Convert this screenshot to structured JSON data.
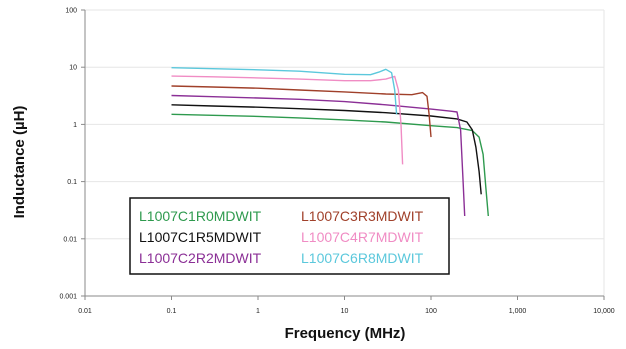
{
  "chart_data": {
    "type": "line",
    "title": "",
    "xlabel": "Frequency (MHz)",
    "ylabel": "Inductance (µH)",
    "x_scale": "log",
    "y_scale": "log",
    "xlim": [
      0.01,
      10000
    ],
    "ylim": [
      0.001,
      100
    ],
    "x_ticks": [
      0.01,
      0.1,
      1,
      10,
      100,
      1000,
      10000
    ],
    "x_tick_labels": [
      "0.01",
      "0.1",
      "1",
      "10",
      "100",
      "1,000",
      "10,000"
    ],
    "y_ticks": [
      0.001,
      0.01,
      0.1,
      1,
      10,
      100
    ],
    "y_tick_labels": [
      "0.001",
      "0.01",
      "0.1",
      "1",
      "10",
      "100"
    ],
    "grid": "horizontal",
    "legend_position": "bottom-left",
    "series": [
      {
        "name": "L1007C1R0MDWIT",
        "color": "#2e9a4e",
        "x": [
          0.1,
          0.3,
          1,
          3,
          10,
          30,
          100,
          200,
          300,
          360,
          400,
          430,
          460
        ],
        "y": [
          1.5,
          1.44,
          1.38,
          1.3,
          1.2,
          1.1,
          0.95,
          0.88,
          0.78,
          0.6,
          0.3,
          0.08,
          0.025
        ]
      },
      {
        "name": "L1007C1R5MDWIT",
        "color": "#111111",
        "x": [
          0.1,
          0.3,
          1,
          3,
          10,
          30,
          100,
          200,
          260,
          300,
          330,
          360,
          380
        ],
        "y": [
          2.2,
          2.1,
          2.0,
          1.88,
          1.75,
          1.6,
          1.4,
          1.25,
          1.1,
          0.8,
          0.4,
          0.15,
          0.06
        ]
      },
      {
        "name": "L1007C2R2MDWIT",
        "color": "#8b2f96",
        "x": [
          0.1,
          0.3,
          1,
          3,
          10,
          30,
          100,
          170,
          200,
          220,
          235,
          245
        ],
        "y": [
          3.2,
          3.05,
          2.9,
          2.75,
          2.5,
          2.2,
          1.85,
          1.7,
          1.65,
          0.8,
          0.1,
          0.025
        ]
      },
      {
        "name": "L1007C3R3MDWIT",
        "color": "#a0402a",
        "x": [
          0.1,
          0.3,
          1,
          3,
          10,
          30,
          60,
          80,
          90,
          95,
          100
        ],
        "y": [
          4.7,
          4.5,
          4.3,
          4.0,
          3.7,
          3.4,
          3.3,
          3.6,
          3.1,
          1.5,
          0.6
        ]
      },
      {
        "name": "L1007C4R7MDWIT",
        "color": "#f08cc4",
        "x": [
          0.1,
          0.3,
          1,
          3,
          10,
          20,
          30,
          38,
          42,
          45,
          47
        ],
        "y": [
          7.0,
          6.8,
          6.5,
          6.2,
          5.8,
          5.8,
          6.2,
          6.9,
          4.0,
          1.0,
          0.2
        ]
      },
      {
        "name": "L1007C6R8MDWIT",
        "color": "#5bc8dc",
        "x": [
          0.1,
          0.3,
          1,
          3,
          10,
          20,
          25,
          30,
          35,
          38,
          40
        ],
        "y": [
          9.8,
          9.4,
          9.0,
          8.5,
          7.5,
          7.4,
          8.2,
          9.2,
          8.0,
          4.0,
          1.5
        ]
      }
    ]
  }
}
